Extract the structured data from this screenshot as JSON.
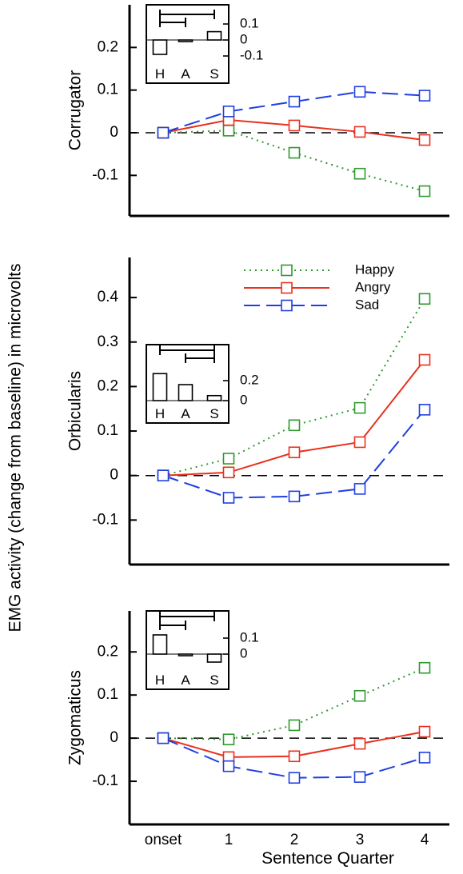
{
  "chart_data": {
    "type": "line",
    "ylabel": "EMG activity (change from baseline) in microvolts",
    "xlabel": "Sentence Quarter",
    "categories": [
      "onset",
      "1",
      "2",
      "3",
      "4"
    ],
    "grid": false,
    "legend": {
      "placement": "top-right of middle panel",
      "entries": [
        "Happy",
        "Angry",
        "Sad"
      ]
    },
    "series_colors": {
      "Happy": "#2e9a2e",
      "Angry": "#e8311f",
      "Sad": "#1f3fe0"
    },
    "series_styles": {
      "Happy": "dotted",
      "Angry": "solid",
      "Sad": "dashed"
    },
    "panels": [
      {
        "id": "corrugator",
        "ylabel": "Corrugator",
        "ylim": [
          -0.195,
          0.3
        ],
        "yticks": [
          {
            "v": 0.2,
            "label": "0.2"
          },
          {
            "v": 0.1,
            "label": "0.1"
          },
          {
            "v": 0,
            "label": "0"
          },
          {
            "v": -0.1,
            "label": "-0.1"
          }
        ],
        "series": [
          {
            "name": "Happy",
            "values": [
              0,
              0.005,
              -0.047,
              -0.096,
              -0.137
            ]
          },
          {
            "name": "Angry",
            "values": [
              0,
              0.03,
              0.017,
              0.002,
              -0.017
            ]
          },
          {
            "name": "Sad",
            "values": [
              0,
              0.05,
              0.073,
              0.096,
              0.087
            ]
          }
        ],
        "inset": {
          "categories": [
            "H",
            "A",
            "S"
          ],
          "values": [
            -0.09,
            -0.003,
            0.052
          ],
          "yticks": [
            {
              "v": 0.1,
              "label": "0.1"
            },
            {
              "v": 0,
              "label": "0"
            },
            {
              "v": -0.1,
              "label": "-0.1"
            }
          ],
          "brackets": [
            [
              "H",
              "S"
            ],
            [
              "H",
              "A"
            ]
          ]
        }
      },
      {
        "id": "orbicularis",
        "ylabel": "Orbicularis",
        "ylim": [
          -0.2,
          0.49
        ],
        "yticks": [
          {
            "v": 0.4,
            "label": "0.4"
          },
          {
            "v": 0.3,
            "label": "0.3"
          },
          {
            "v": 0.2,
            "label": "0.2"
          },
          {
            "v": 0.1,
            "label": "0.1"
          },
          {
            "v": 0,
            "label": "0"
          },
          {
            "v": -0.1,
            "label": "-0.1"
          }
        ],
        "series": [
          {
            "name": "Happy",
            "values": [
              0,
              0.038,
              0.113,
              0.152,
              0.397
            ]
          },
          {
            "name": "Angry",
            "values": [
              0,
              0.007,
              0.052,
              0.075,
              0.26
            ]
          },
          {
            "name": "Sad",
            "values": [
              0,
              -0.05,
              -0.047,
              -0.03,
              0.148
            ]
          }
        ],
        "inset": {
          "categories": [
            "H",
            "A",
            "S"
          ],
          "values": [
            0.27,
            0.16,
            0.05
          ],
          "yticks": [
            {
              "v": 0.2,
              "label": "0.2"
            },
            {
              "v": 0,
              "label": "0"
            }
          ],
          "brackets": [
            [
              "H",
              "S"
            ],
            [
              "A",
              "S"
            ]
          ]
        }
      },
      {
        "id": "zygomaticus",
        "ylabel": "Zygomaticus",
        "ylim": [
          -0.2,
          0.295
        ],
        "yticks": [
          {
            "v": 0.2,
            "label": "0.2"
          },
          {
            "v": 0.1,
            "label": "0.1"
          },
          {
            "v": 0,
            "label": "0"
          },
          {
            "v": -0.1,
            "label": "-0.1"
          }
        ],
        "series": [
          {
            "name": "Happy",
            "values": [
              0,
              -0.003,
              0.03,
              0.098,
              0.163
            ]
          },
          {
            "name": "Angry",
            "values": [
              0,
              -0.044,
              -0.042,
              -0.013,
              0.015
            ]
          },
          {
            "name": "Sad",
            "values": [
              0,
              -0.065,
              -0.092,
              -0.09,
              -0.045
            ]
          }
        ],
        "inset": {
          "categories": [
            "H",
            "A",
            "S"
          ],
          "values": [
            0.12,
            -0.005,
            -0.05
          ],
          "yticks": [
            {
              "v": 0.1,
              "label": "0.1"
            },
            {
              "v": 0,
              "label": "0"
            }
          ],
          "brackets": [
            [
              "H",
              "S"
            ],
            [
              "H",
              "A"
            ]
          ]
        }
      }
    ]
  }
}
